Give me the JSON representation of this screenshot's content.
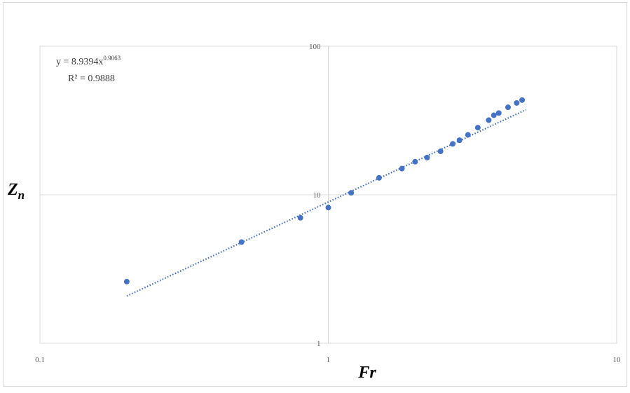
{
  "chart_data": {
    "type": "scatter",
    "x_scale": "log",
    "y_scale": "log",
    "xlim": [
      0.1,
      10
    ],
    "ylim": [
      1,
      100
    ],
    "x_ticks": [
      "0.1",
      "1",
      "10"
    ],
    "y_ticks": [
      "1",
      "10",
      "100"
    ],
    "xlabel": "Fr",
    "ylabel": "Z",
    "ylabel_subscript": "n",
    "grid": true,
    "legend": "none",
    "colors": {
      "points": "#4472c4",
      "trendline": "#4472c4",
      "gridline": "#d9d9d9"
    },
    "trendline": {
      "type": "power",
      "style": "dotted",
      "equation_prefix": "y = 8.9394x",
      "equation_exponent": "0.9063",
      "r_squared": "R² = 0.9888",
      "coefficient": 8.9394,
      "exponent": 0.9063,
      "x_range": [
        0.2,
        4.85
      ]
    },
    "series": [
      {
        "x": [
          0.2,
          0.5,
          0.8,
          1.0,
          1.2,
          1.5,
          1.8,
          2.0,
          2.2,
          2.45,
          2.7,
          2.85,
          3.05,
          3.3,
          3.6,
          3.75,
          3.9,
          4.2,
          4.5,
          4.7
        ],
        "y": [
          2.6,
          4.8,
          7.0,
          8.2,
          10.3,
          13.0,
          15.0,
          16.7,
          17.8,
          19.6,
          22.0,
          23.3,
          25.3,
          28.3,
          31.8,
          34.3,
          35.5,
          38.8,
          41.5,
          43.4
        ]
      }
    ]
  }
}
